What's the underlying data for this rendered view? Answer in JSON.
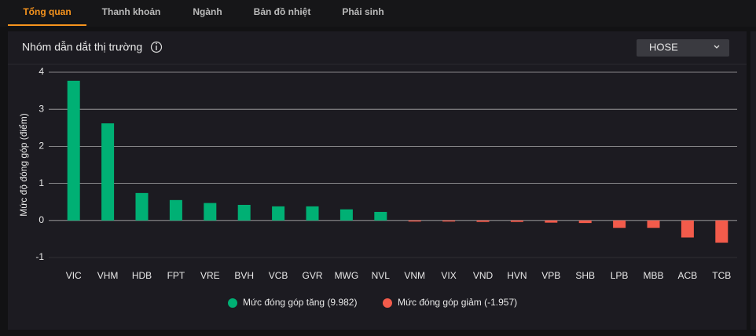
{
  "tabs": [
    "Tổng quan",
    "Thanh khoản",
    "Ngành",
    "Bản đồ nhiệt",
    "Phái sinh"
  ],
  "panel": {
    "title": "Nhóm dẫn dắt thị trường",
    "dropdown": "HOSE"
  },
  "chart_data": {
    "type": "bar",
    "y_label": "Mức độ đóng góp (điểm)",
    "categories": [
      "VIC",
      "VHM",
      "HDB",
      "FPT",
      "VRE",
      "BVH",
      "VCB",
      "GVR",
      "MWG",
      "NVL",
      "VNM",
      "VIX",
      "VND",
      "HVN",
      "VPB",
      "SHB",
      "LPB",
      "MBB",
      "ACB",
      "TCB"
    ],
    "series": [
      {
        "name": "Mức đóng góp tăng (9.982)",
        "color": "#00b074",
        "values": [
          3.77,
          2.62,
          0.74,
          0.55,
          0.47,
          0.42,
          0.38,
          0.38,
          0.3,
          0.23,
          null,
          null,
          null,
          null,
          null,
          null,
          null,
          null,
          null,
          null
        ]
      },
      {
        "name": "Mức đóng góp giảm (-1.957)",
        "color": "#f25b4b",
        "values": [
          null,
          null,
          null,
          null,
          null,
          null,
          null,
          null,
          null,
          null,
          -0.03,
          -0.03,
          -0.04,
          -0.04,
          -0.06,
          -0.07,
          -0.2,
          -0.2,
          -0.46,
          -0.6
        ]
      }
    ],
    "ylim": [
      -1,
      4
    ],
    "yticks": [
      -1,
      0,
      1,
      2,
      3,
      4
    ],
    "grid": true,
    "legend": "bottom"
  }
}
